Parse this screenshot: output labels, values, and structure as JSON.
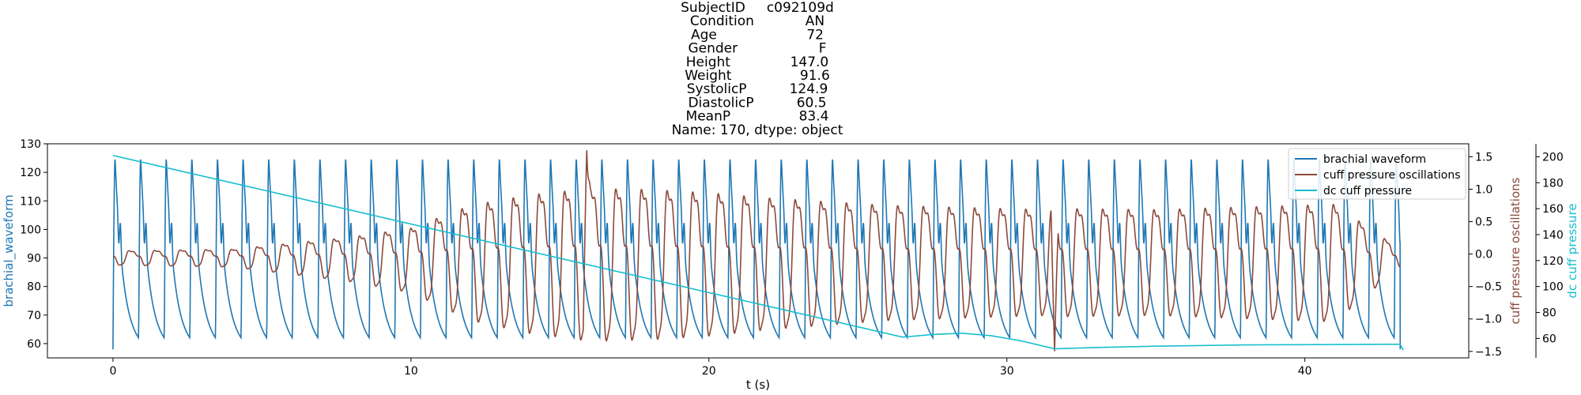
{
  "chart_data": {
    "type": "line",
    "title_lines": [
      "SubjectID     c092109d",
      "Condition            AN",
      "Age                     72",
      "Gender                   F",
      "Height              147.0",
      "Weight                91.6",
      "SystolicP          124.9",
      "DiastolicP          60.5",
      "MeanP                83.4",
      "Name: 170, dtype: object"
    ],
    "xlabel": "t (s)",
    "xlim": [
      -2.2,
      45.5
    ],
    "xticks": [
      0,
      10,
      20,
      30,
      40
    ],
    "axes": [
      {
        "id": "left",
        "label": "brachial_waveform",
        "label_color": "#1f77b4",
        "ylim": [
          55,
          130
        ],
        "ticks": [
          60,
          70,
          80,
          90,
          100,
          110,
          120,
          130
        ]
      },
      {
        "id": "right1",
        "label": "cuff pressure oscillations",
        "label_color": "#8c4a3c",
        "ylim": [
          -1.6,
          1.7
        ],
        "ticks": [
          -1.5,
          -1.0,
          -0.5,
          0.0,
          0.5,
          1.0,
          1.5
        ],
        "tick_labels": [
          "−1.5",
          "−1.0",
          "−0.5",
          "0.0",
          "0.5",
          "1.0",
          "1.5"
        ]
      },
      {
        "id": "right2",
        "label": "dc cuff pressure",
        "label_color": "#17becf",
        "ylim": [
          45,
          210
        ],
        "ticks": [
          60,
          80,
          100,
          120,
          140,
          160,
          180,
          200
        ]
      }
    ],
    "series": [
      {
        "name": "brachial waveform",
        "axis": "left",
        "color": "#1f77b4",
        "form": "periodic pulse",
        "t_range": [
          0,
          43.2
        ],
        "period": 0.86,
        "systolic": 124.9,
        "diastolic": 60.5,
        "start": 58,
        "end": 58
      },
      {
        "name": "cuff pressure oscillations",
        "axis": "right1",
        "color": "#8c4a3c",
        "form": "oscillation, amplitude envelope",
        "t_range": [
          0,
          43.2
        ],
        "baseline": -0.05,
        "envelope_t": [
          0,
          4,
          8,
          10,
          12,
          14,
          16,
          18,
          20,
          22,
          24,
          26,
          28,
          30,
          31.5,
          32,
          35,
          38,
          41,
          43.2
        ],
        "envelope_amp": [
          0.12,
          0.15,
          0.38,
          0.55,
          0.98,
          1.18,
          1.3,
          1.28,
          1.22,
          1.12,
          1.05,
          0.98,
          0.95,
          0.92,
          0.9,
          0.92,
          0.9,
          0.95,
          1.0,
          0.15
        ],
        "extremes": [
          [
            15.9,
            1.6
          ],
          [
            31.6,
            -1.5
          ]
        ]
      },
      {
        "name": "dc cuff pressure",
        "axis": "right2",
        "color": "#17becf",
        "form": "decay",
        "points": [
          [
            0,
            201
          ],
          [
            26.5,
            61
          ],
          [
            27.5,
            63
          ],
          [
            28.5,
            64
          ],
          [
            29.5,
            62
          ],
          [
            30.5,
            58
          ],
          [
            31.6,
            52
          ],
          [
            33,
            53
          ],
          [
            35,
            54
          ],
          [
            38,
            55
          ],
          [
            43.2,
            55.5
          ]
        ],
        "end_drop": [
          43.3,
          51
        ]
      }
    ],
    "legend": {
      "position": "top-right",
      "entries": [
        "brachial waveform",
        "cuff pressure oscillations",
        "dc cuff pressure"
      ]
    },
    "grid": false
  }
}
